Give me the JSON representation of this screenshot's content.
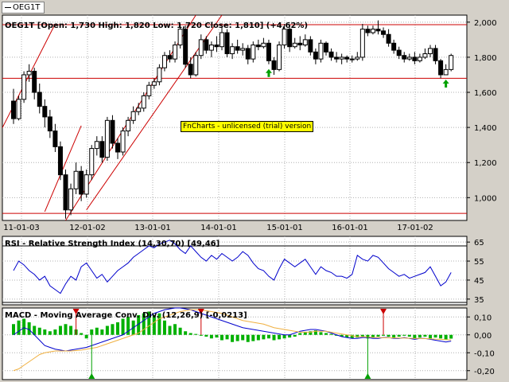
{
  "legend": {
    "label": "OEG1T"
  },
  "watermark": "FnCharts - unlicensed (trial) version",
  "chart_data": [
    {
      "type": "candlestick",
      "title": "OEG1T [Open: 1,730 High: 1,820 Low: 1,720 Close: 1,810] (+4,62%)",
      "y_ticks": [
        "2,000",
        "1,800",
        "1,600",
        "1,400",
        "1,200",
        "1,000"
      ],
      "y_tick_values": [
        2000,
        1800,
        1600,
        1400,
        1200,
        1000
      ],
      "x_ticks": [
        "11-01-03",
        "12-01-02",
        "13-01-01",
        "14-01-01",
        "15-01-01",
        "16-01-01",
        "17-01-02"
      ],
      "ylim": [
        870,
        2040
      ],
      "candles": [
        [
          1550,
          1450,
          1620,
          1420
        ],
        [
          1450,
          1560,
          1580,
          1440
        ],
        [
          1560,
          1700,
          1720,
          1540
        ],
        [
          1700,
          1720,
          1760,
          1660
        ],
        [
          1720,
          1600,
          1740,
          1560
        ],
        [
          1600,
          1520,
          1650,
          1480
        ],
        [
          1520,
          1460,
          1560,
          1400
        ],
        [
          1460,
          1380,
          1500,
          1340
        ],
        [
          1380,
          1290,
          1420,
          1260
        ],
        [
          1290,
          1130,
          1320,
          1100
        ],
        [
          1130,
          930,
          1160,
          880
        ],
        [
          930,
          1050,
          1080,
          900
        ],
        [
          1050,
          1150,
          1200,
          1020
        ],
        [
          1150,
          1020,
          1180,
          980
        ],
        [
          1020,
          1130,
          1160,
          1000
        ],
        [
          1130,
          1280,
          1300,
          1100
        ],
        [
          1280,
          1320,
          1350,
          1240
        ],
        [
          1320,
          1230,
          1350,
          1200
        ],
        [
          1230,
          1440,
          1460,
          1210
        ],
        [
          1440,
          1310,
          1470,
          1280
        ],
        [
          1310,
          1260,
          1340,
          1220
        ],
        [
          1260,
          1380,
          1400,
          1240
        ],
        [
          1380,
          1440,
          1460,
          1350
        ],
        [
          1440,
          1490,
          1520,
          1420
        ],
        [
          1490,
          1510,
          1540,
          1470
        ],
        [
          1510,
          1580,
          1600,
          1490
        ],
        [
          1580,
          1640,
          1660,
          1560
        ],
        [
          1640,
          1660,
          1680,
          1620
        ],
        [
          1660,
          1740,
          1760,
          1640
        ],
        [
          1740,
          1810,
          1830,
          1720
        ],
        [
          1810,
          1790,
          1840,
          1770
        ],
        [
          1790,
          1870,
          1890,
          1770
        ],
        [
          1870,
          1960,
          1990,
          1850
        ],
        [
          1960,
          1760,
          1980,
          1740
        ],
        [
          1760,
          1700,
          1800,
          1680
        ],
        [
          1700,
          1810,
          1830,
          1690
        ],
        [
          1810,
          1900,
          1930,
          1790
        ],
        [
          1900,
          1840,
          1920,
          1820
        ],
        [
          1840,
          1870,
          1890,
          1800
        ],
        [
          1870,
          1860,
          1920,
          1830
        ],
        [
          1860,
          1940,
          1970,
          1840
        ],
        [
          1940,
          1820,
          1960,
          1800
        ],
        [
          1820,
          1860,
          1880,
          1790
        ],
        [
          1860,
          1840,
          1900,
          1820
        ],
        [
          1840,
          1850,
          1880,
          1810
        ],
        [
          1850,
          1790,
          1870,
          1760
        ],
        [
          1790,
          1870,
          1890,
          1770
        ],
        [
          1870,
          1860,
          1900,
          1840
        ],
        [
          1860,
          1880,
          1910,
          1850
        ],
        [
          1880,
          1780,
          1900,
          1760
        ],
        [
          1780,
          1730,
          1800,
          1700
        ],
        [
          1730,
          1870,
          1890,
          1720
        ],
        [
          1870,
          1960,
          1990,
          1850
        ],
        [
          1960,
          1860,
          1980,
          1830
        ],
        [
          1860,
          1880,
          1910,
          1850
        ],
        [
          1880,
          1870,
          1920,
          1840
        ],
        [
          1870,
          1900,
          1930,
          1860
        ],
        [
          1900,
          1830,
          1920,
          1810
        ],
        [
          1830,
          1790,
          1850,
          1760
        ],
        [
          1790,
          1880,
          1900,
          1770
        ],
        [
          1880,
          1830,
          1890,
          1810
        ],
        [
          1830,
          1800,
          1850,
          1780
        ],
        [
          1800,
          1790,
          1830,
          1770
        ],
        [
          1790,
          1800,
          1820,
          1760
        ],
        [
          1800,
          1790,
          1810,
          1770
        ],
        [
          1790,
          1790,
          1810,
          1770
        ],
        [
          1790,
          1800,
          1830,
          1780
        ],
        [
          1800,
          1960,
          1990,
          1780
        ],
        [
          1960,
          1940,
          1980,
          1920
        ],
        [
          1940,
          1960,
          1980,
          1930
        ],
        [
          1960,
          1950,
          2010,
          1930
        ],
        [
          1950,
          1930,
          1970,
          1910
        ],
        [
          1930,
          1880,
          1960,
          1860
        ],
        [
          1880,
          1840,
          1900,
          1820
        ],
        [
          1840,
          1810,
          1860,
          1790
        ],
        [
          1810,
          1790,
          1830,
          1770
        ],
        [
          1790,
          1800,
          1820,
          1780
        ],
        [
          1800,
          1780,
          1830,
          1760
        ],
        [
          1780,
          1800,
          1820,
          1770
        ],
        [
          1800,
          1820,
          1850,
          1790
        ],
        [
          1820,
          1850,
          1870,
          1800
        ],
        [
          1850,
          1780,
          1870,
          1760
        ],
        [
          1780,
          1700,
          1790,
          1680
        ],
        [
          1700,
          1730,
          1760,
          1700
        ],
        [
          1730,
          1810,
          1820,
          1720
        ]
      ],
      "arrows_up_idx": [
        49,
        83
      ],
      "support_lines": [
        1680,
        910
      ],
      "channel_lines": [
        [
          [
            -4,
            1290
          ],
          [
            8,
            1990
          ]
        ],
        [
          [
            6,
            920
          ],
          [
            13,
            1410
          ]
        ],
        [
          [
            10,
            870
          ],
          [
            35,
            2040
          ]
        ],
        [
          [
            14,
            930
          ],
          [
            40,
            2040
          ]
        ]
      ]
    },
    {
      "type": "line",
      "title": "RSI - Relative Strength Index (14,30,70) [49,46]",
      "y_ticks": [
        "65",
        "55",
        "45",
        "35"
      ],
      "y_tick_values": [
        65,
        55,
        45,
        35
      ],
      "ylim": [
        32,
        68
      ],
      "hlines": [
        70,
        30
      ],
      "series": [
        {
          "color": "#0000cc",
          "values": [
            50,
            55,
            53,
            50,
            48,
            45,
            47,
            42,
            40,
            38,
            43,
            47,
            45,
            52,
            54,
            50,
            46,
            48,
            44,
            47,
            50,
            52,
            54,
            57,
            59,
            61,
            63,
            62,
            64,
            65,
            66,
            64,
            61,
            59,
            63,
            60,
            57,
            55,
            58,
            56,
            59,
            57,
            55,
            57,
            60,
            58,
            54,
            51,
            50,
            47,
            45,
            51,
            56,
            54,
            52,
            54,
            56,
            52,
            48,
            52,
            50,
            49,
            47,
            47,
            46,
            48,
            58,
            56,
            55,
            58,
            57,
            54,
            51,
            49,
            47,
            48,
            46,
            47,
            48,
            49,
            52,
            47,
            42,
            44,
            49
          ]
        }
      ]
    },
    {
      "type": "bar+line",
      "title": "MACD - Moving Average Conv. Div. (12,26,9) [-0,0213]",
      "y_ticks": [
        "0,10",
        "0,00",
        "-0,10",
        "-0,20"
      ],
      "y_tick_values": [
        0.1,
        0.0,
        -0.1,
        -0.2
      ],
      "ylim": [
        -0.25,
        0.15
      ],
      "histogram": [
        0.06,
        0.08,
        0.09,
        0.07,
        0.05,
        0.04,
        0.03,
        0.02,
        0.03,
        0.05,
        0.06,
        0.05,
        0.03,
        0.01,
        -0.02,
        0.03,
        0.04,
        0.03,
        0.05,
        0.06,
        0.07,
        0.09,
        0.1,
        0.08,
        0.11,
        0.12,
        0.13,
        0.11,
        0.12,
        0.08,
        0.05,
        0.06,
        0.04,
        0.02,
        0.01,
        0.005,
        -0.005,
        -0.01,
        -0.02,
        -0.015,
        -0.03,
        -0.025,
        -0.04,
        -0.035,
        -0.03,
        -0.04,
        -0.035,
        -0.03,
        -0.025,
        -0.02,
        -0.03,
        -0.025,
        -0.02,
        -0.015,
        -0.01,
        0.01,
        0.015,
        0.02,
        0.025,
        0.015,
        0.01,
        0.005,
        -0.005,
        -0.01,
        -0.015,
        -0.02,
        -0.015,
        -0.01,
        -0.02,
        -0.015,
        -0.01,
        -0.005,
        -0.01,
        -0.015,
        -0.01,
        -0.005,
        -0.01,
        -0.02,
        -0.015,
        -0.01,
        -0.02,
        -0.015,
        -0.02,
        -0.025,
        -0.021
      ],
      "series": [
        {
          "color": "#0000cc",
          "values": [
            0.0,
            0.02,
            0.04,
            0.03,
            0.0,
            -0.03,
            -0.06,
            -0.07,
            -0.08,
            -0.085,
            -0.09,
            -0.085,
            -0.08,
            -0.075,
            -0.07,
            -0.06,
            -0.05,
            -0.04,
            -0.03,
            -0.02,
            -0.01,
            0.0,
            0.02,
            0.04,
            0.06,
            0.08,
            0.1,
            0.12,
            0.13,
            0.14,
            0.145,
            0.15,
            0.15,
            0.145,
            0.14,
            0.13,
            0.12,
            0.11,
            0.1,
            0.09,
            0.08,
            0.07,
            0.06,
            0.05,
            0.04,
            0.035,
            0.03,
            0.025,
            0.02,
            0.015,
            0.01,
            0.005,
            0.0,
            0.0,
            0.01,
            0.02,
            0.025,
            0.03,
            0.03,
            0.025,
            0.02,
            0.01,
            0.0,
            -0.01,
            -0.015,
            -0.02,
            -0.02,
            -0.015,
            -0.015,
            -0.02,
            -0.02,
            -0.015,
            -0.015,
            -0.02,
            -0.02,
            -0.015,
            -0.02,
            -0.025,
            -0.02,
            -0.02,
            -0.025,
            -0.03,
            -0.035,
            -0.04,
            -0.035
          ]
        },
        {
          "color": "#f0b040",
          "values": [
            -0.2,
            -0.19,
            -0.17,
            -0.15,
            -0.13,
            -0.11,
            -0.1,
            -0.095,
            -0.09,
            -0.09,
            -0.09,
            -0.09,
            -0.088,
            -0.085,
            -0.08,
            -0.075,
            -0.07,
            -0.06,
            -0.05,
            -0.04,
            -0.03,
            -0.02,
            -0.01,
            0.0,
            0.01,
            0.03,
            0.05,
            0.07,
            0.09,
            0.1,
            0.11,
            0.12,
            0.13,
            0.135,
            0.14,
            0.14,
            0.138,
            0.135,
            0.13,
            0.125,
            0.12,
            0.11,
            0.1,
            0.09,
            0.08,
            0.075,
            0.07,
            0.065,
            0.06,
            0.05,
            0.04,
            0.035,
            0.03,
            0.025,
            0.02,
            0.015,
            0.015,
            0.015,
            0.02,
            0.02,
            0.02,
            0.015,
            0.01,
            0.005,
            0.0,
            -0.005,
            -0.01,
            -0.01,
            -0.012,
            -0.014,
            -0.015,
            -0.016,
            -0.016,
            -0.017,
            -0.018,
            -0.018,
            -0.019,
            -0.02,
            -0.02,
            -0.021,
            -0.022,
            -0.024,
            -0.025,
            -0.027,
            -0.028
          ]
        }
      ],
      "sell_markers_idx": [
        12,
        36,
        71
      ],
      "buy_markers_idx": [
        15,
        68
      ]
    }
  ]
}
